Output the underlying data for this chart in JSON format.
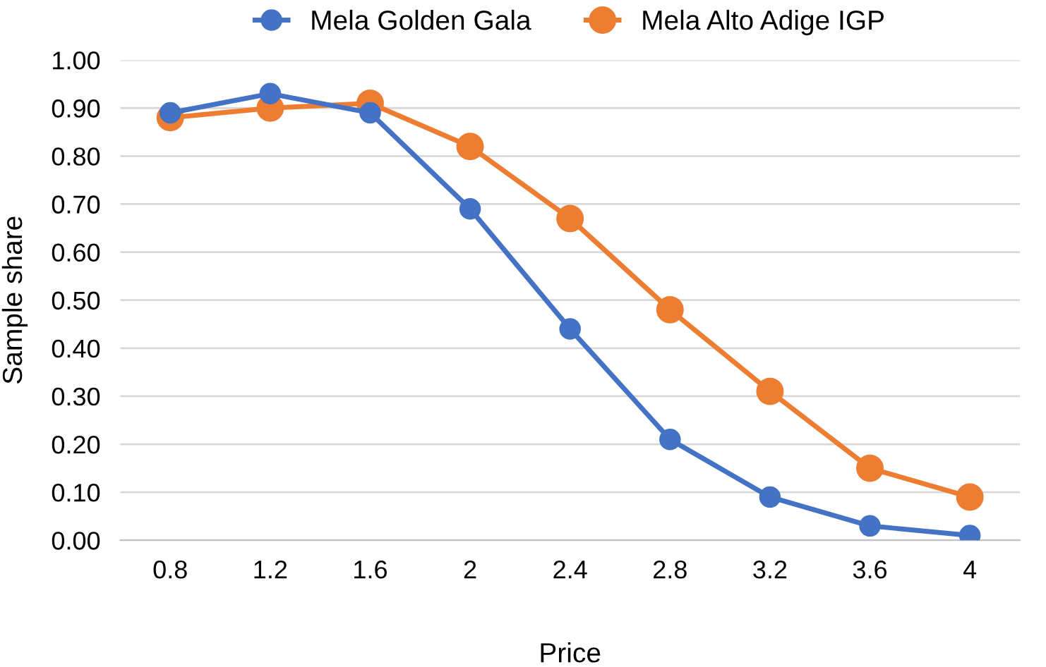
{
  "chart_data": {
    "type": "line",
    "xlabel": "Price",
    "ylabel": "Sample share",
    "categories": [
      "0.8",
      "1.2",
      "1.6",
      "2",
      "2.4",
      "2.8",
      "3.2",
      "3.6",
      "4"
    ],
    "series": [
      {
        "name": "Mela Golden Gala",
        "color": "#4472c4",
        "values": [
          0.89,
          0.93,
          0.89,
          0.69,
          0.44,
          0.21,
          0.09,
          0.03,
          0.01
        ]
      },
      {
        "name": "Mela Alto Adige IGP",
        "color": "#ed7d31",
        "values": [
          0.88,
          0.9,
          0.91,
          0.82,
          0.67,
          0.48,
          0.31,
          0.15,
          0.09
        ]
      }
    ],
    "ylim": [
      0,
      1
    ],
    "yticks": [
      {
        "value": 0,
        "label": "0.00"
      },
      {
        "value": 0.1,
        "label": "0.10"
      },
      {
        "value": 0.2,
        "label": "0.20"
      },
      {
        "value": 0.3,
        "label": "0.30"
      },
      {
        "value": 0.4,
        "label": "0.40"
      },
      {
        "value": 0.5,
        "label": "0.50"
      },
      {
        "value": 0.6,
        "label": "0.60"
      },
      {
        "value": 0.7,
        "label": "0.70"
      },
      {
        "value": 0.8,
        "label": "0.80"
      },
      {
        "value": 0.9,
        "label": "0.90"
      },
      {
        "value": 1,
        "label": "1.00"
      }
    ],
    "grid": "y",
    "legend": "top",
    "marker": "circle",
    "line_style": "solid"
  }
}
